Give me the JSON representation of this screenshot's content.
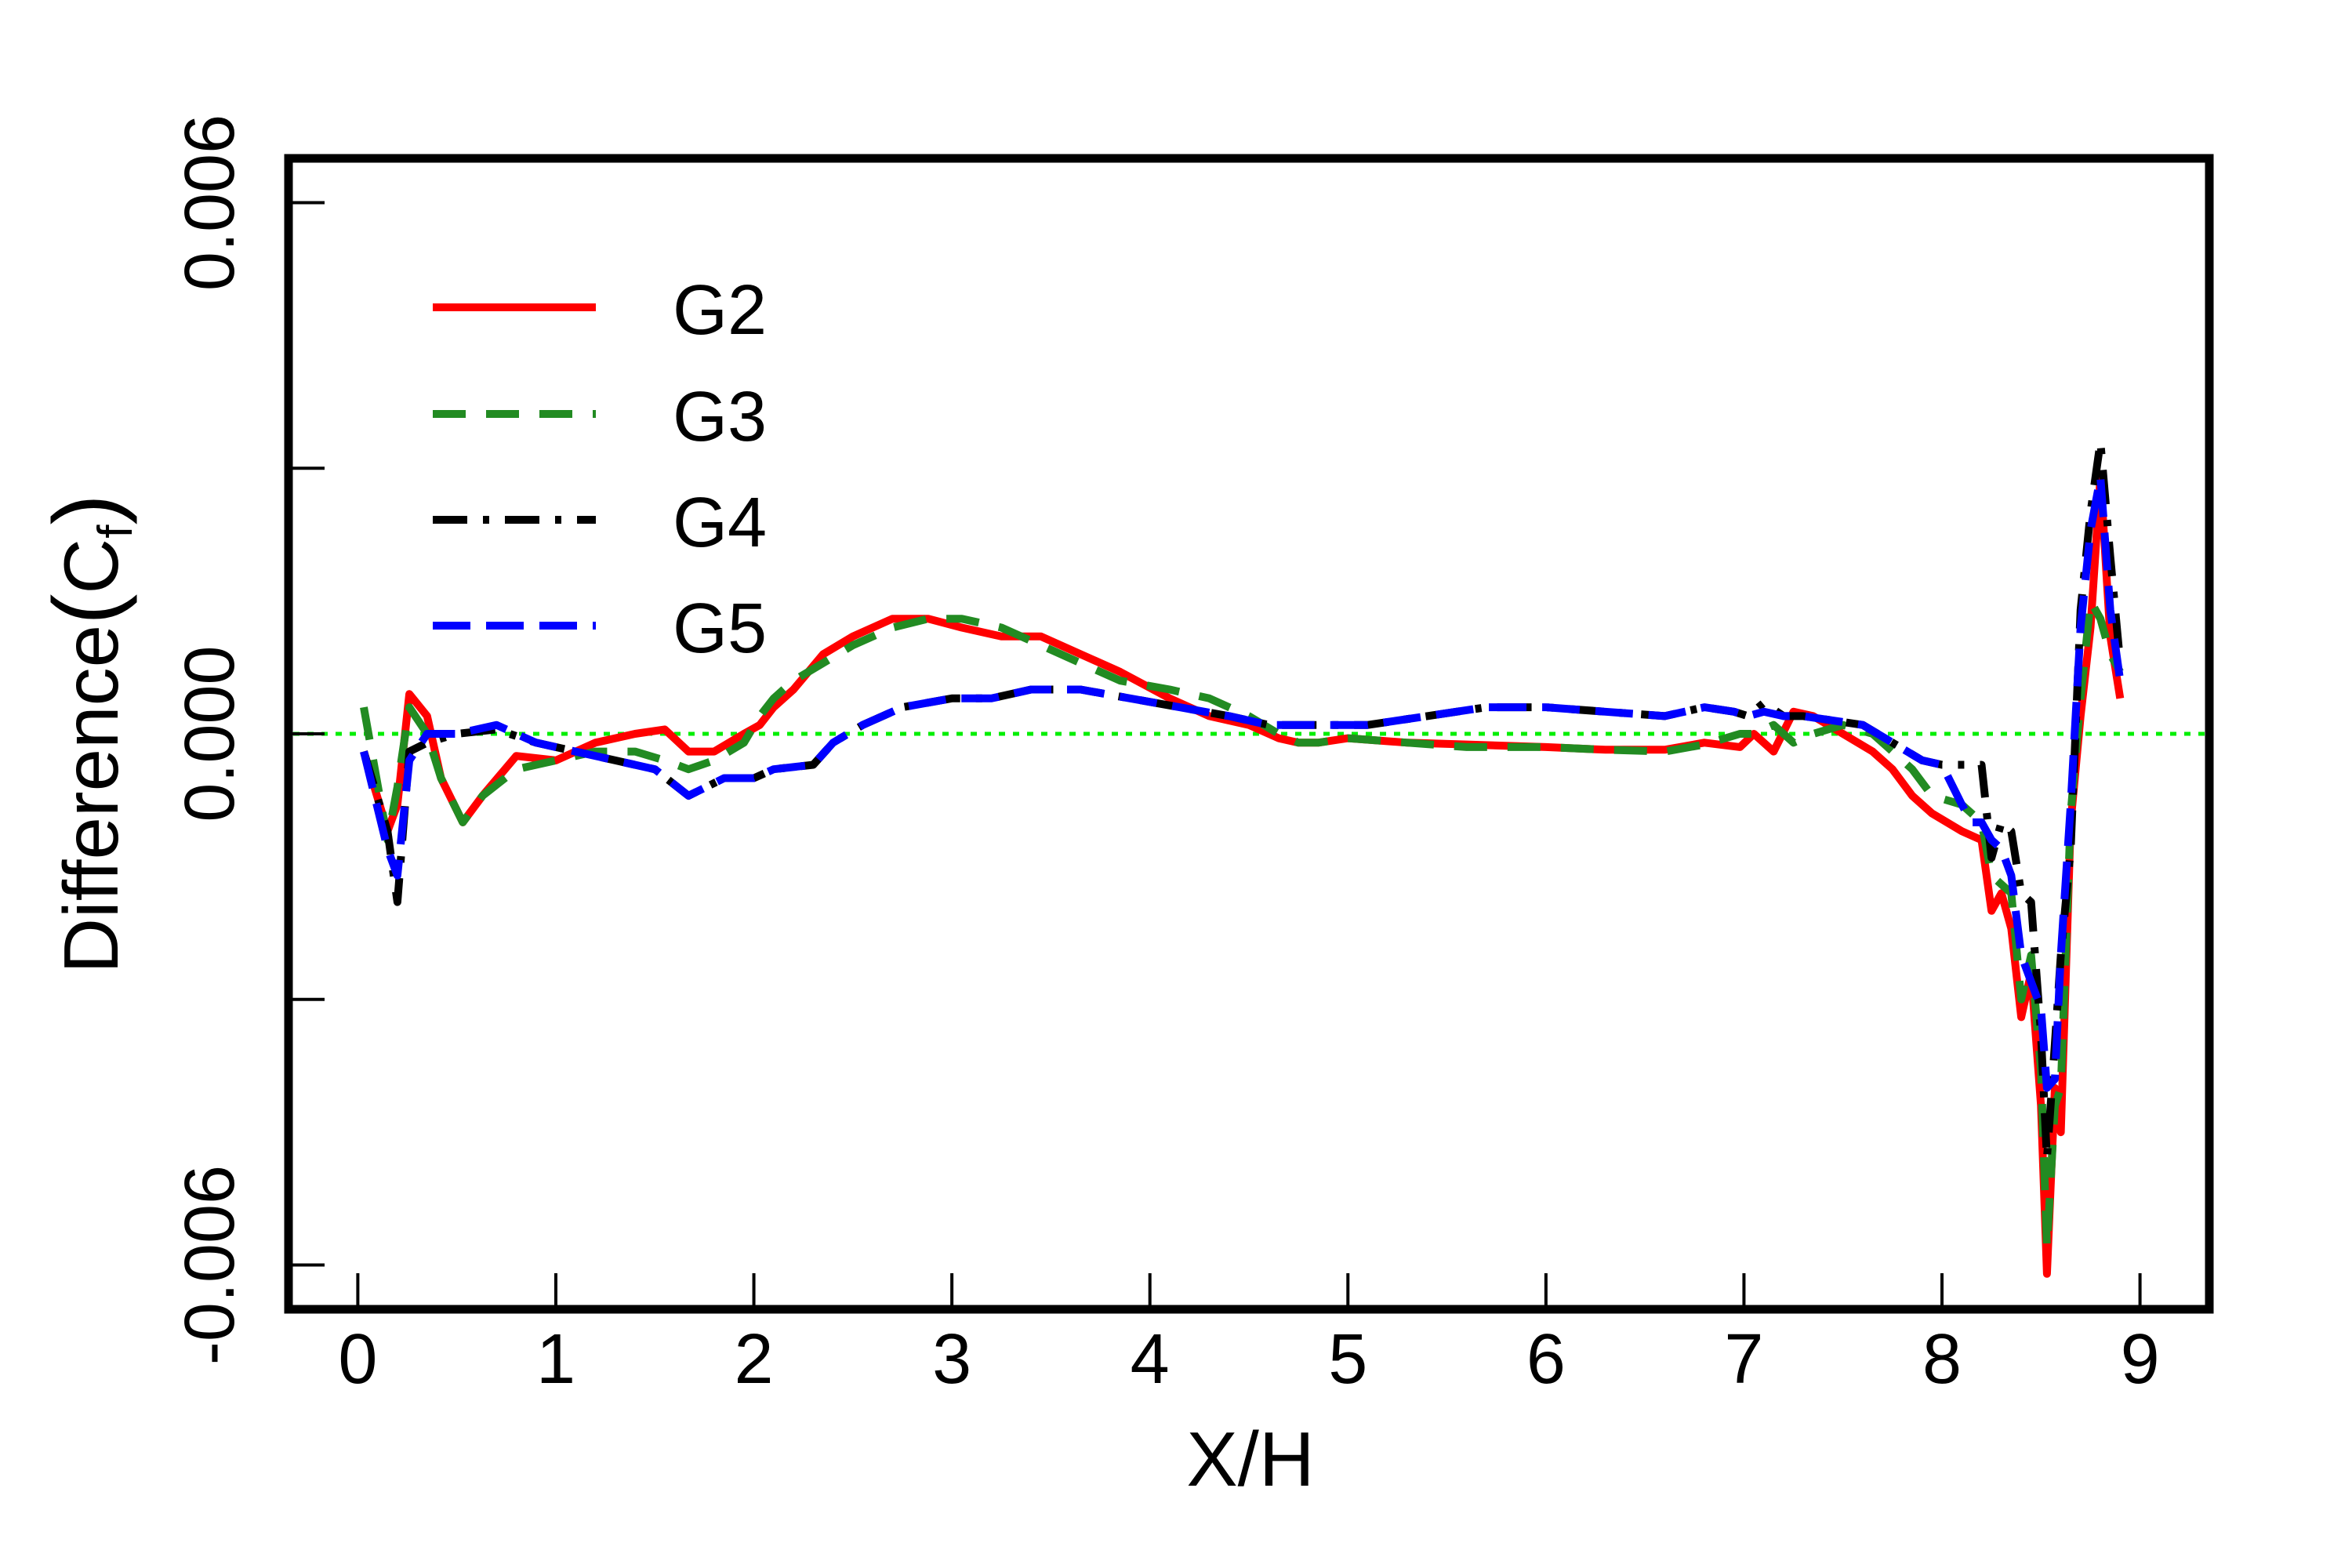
{
  "chart_data": {
    "type": "line",
    "title": "",
    "xlabel": "X/H",
    "ylabel_main": "Difference",
    "ylabel_open": "(",
    "ylabel_sym": "C",
    "ylabel_sub": "f",
    "ylabel_close": ")",
    "xlim": [
      -0.35,
      9.35
    ],
    "ylim": [
      -0.0065,
      0.0065
    ],
    "x_ticks": [
      0,
      1,
      2,
      3,
      4,
      5,
      6,
      7,
      8,
      9
    ],
    "x_tick_labels": [
      "0",
      "1",
      "2",
      "3",
      "4",
      "5",
      "6",
      "7",
      "8",
      "9"
    ],
    "y_ticks": [
      -0.006,
      -0.003,
      0.0,
      0.003,
      0.006
    ],
    "y_tick_labels": [
      "-0.006",
      "",
      "0.000",
      "",
      "0.006"
    ],
    "grid": false,
    "legend_position": "top-left",
    "reference_line": {
      "y": 0.0,
      "color": "#00ee00",
      "style": "dotted"
    },
    "series": [
      {
        "name": "G2",
        "color": "#ff0000",
        "dash": "solid",
        "x": [
          0.03,
          0.15,
          0.2,
          0.26,
          0.35,
          0.42,
          0.53,
          0.63,
          0.8,
          1.0,
          1.2,
          1.4,
          1.55,
          1.67,
          1.8,
          1.95,
          2.03,
          2.1,
          2.2,
          2.35,
          2.5,
          2.7,
          2.88,
          3.05,
          3.25,
          3.45,
          3.65,
          3.85,
          4.1,
          4.3,
          4.5,
          4.65,
          4.75,
          4.85,
          5.0,
          5.3,
          5.6,
          6.0,
          6.3,
          6.6,
          6.8,
          6.98,
          7.05,
          7.15,
          7.25,
          7.35,
          7.5,
          7.65,
          7.75,
          7.85,
          7.95,
          8.1,
          8.2,
          8.25,
          8.3,
          8.35,
          8.4,
          8.45,
          8.5,
          8.53,
          8.57,
          8.6,
          8.65,
          8.7,
          8.75,
          8.8,
          8.85,
          8.9
        ],
        "y": [
          -0.0002,
          -0.0011,
          -0.0008,
          0.00045,
          0.0002,
          -0.0005,
          -0.001,
          -0.0007,
          -0.00025,
          -0.0003,
          -0.0001,
          0.0,
          5e-05,
          -0.0002,
          -0.0002,
          0.0,
          0.0001,
          0.0003,
          0.0005,
          0.0009,
          0.0011,
          0.0013,
          0.0013,
          0.0012,
          0.0011,
          0.0011,
          0.0009,
          0.0007,
          0.0004,
          0.0002,
          0.0001,
          -5e-05,
          -0.0001,
          -0.0001,
          -5e-05,
          -0.0001,
          -0.00012,
          -0.00015,
          -0.00018,
          -0.00018,
          -0.0001,
          -0.00015,
          0.0,
          -0.0002,
          0.00025,
          0.0002,
          0.0,
          -0.0002,
          -0.0004,
          -0.0007,
          -0.0009,
          -0.0011,
          -0.0012,
          -0.002,
          -0.0018,
          -0.0022,
          -0.0032,
          -0.0027,
          -0.0042,
          -0.0061,
          -0.004,
          -0.0045,
          -0.001,
          0.0002,
          0.0012,
          0.0029,
          0.0011,
          0.0004
        ]
      },
      {
        "name": "G3",
        "color": "#228b22",
        "dash": "dashed",
        "x": [
          0.03,
          0.15,
          0.2,
          0.26,
          0.35,
          0.42,
          0.53,
          0.63,
          0.8,
          1.0,
          1.2,
          1.4,
          1.55,
          1.67,
          1.8,
          1.95,
          2.03,
          2.1,
          2.2,
          2.35,
          2.5,
          2.7,
          2.88,
          3.05,
          3.25,
          3.45,
          3.65,
          3.85,
          4.1,
          4.3,
          4.5,
          4.65,
          4.75,
          4.85,
          5.0,
          5.3,
          5.6,
          6.0,
          6.3,
          6.6,
          6.8,
          6.98,
          7.05,
          7.15,
          7.25,
          7.35,
          7.5,
          7.65,
          7.75,
          7.85,
          7.95,
          8.1,
          8.2,
          8.25,
          8.3,
          8.35,
          8.4,
          8.45,
          8.5,
          8.53,
          8.57,
          8.6,
          8.65,
          8.7,
          8.75,
          8.8,
          8.85,
          8.9
        ],
        "y": [
          0.0003,
          -0.0012,
          -0.0006,
          0.0003,
          0.0,
          -0.0005,
          -0.001,
          -0.0007,
          -0.0004,
          -0.0003,
          -0.0002,
          -0.0002,
          -0.0003,
          -0.0004,
          -0.0003,
          -0.0001,
          0.0002,
          0.0004,
          0.0006,
          0.0008,
          0.001,
          0.0012,
          0.0013,
          0.0013,
          0.0012,
          0.001,
          0.0008,
          0.0006,
          0.0005,
          0.0004,
          0.0002,
          0.0,
          -0.0001,
          -0.0001,
          -5e-05,
          -0.0001,
          -0.00015,
          -0.00015,
          -0.00018,
          -0.0002,
          -0.00012,
          0.0,
          0.0,
          0.0001,
          -0.0001,
          0.0,
          0.0001,
          0.0,
          -0.0002,
          -0.0004,
          -0.0007,
          -0.0008,
          -0.001,
          -0.0016,
          -0.0017,
          -0.0018,
          -0.003,
          -0.0025,
          -0.0038,
          -0.0058,
          -0.0042,
          -0.004,
          -0.0009,
          0.0004,
          0.0015,
          0.0013,
          0.0009,
          0.0007
        ]
      },
      {
        "name": "G4",
        "color": "#000000",
        "dash": "dashdot",
        "x": [
          0.03,
          0.15,
          0.2,
          0.26,
          0.35,
          0.5,
          0.7,
          0.9,
          1.1,
          1.3,
          1.5,
          1.67,
          1.85,
          2.0,
          2.1,
          2.3,
          2.4,
          2.55,
          2.75,
          3.0,
          3.2,
          3.4,
          3.65,
          3.9,
          4.15,
          4.4,
          4.6,
          4.85,
          5.1,
          5.4,
          5.7,
          6.0,
          6.3,
          6.6,
          6.8,
          6.95,
          7.02,
          7.1,
          7.2,
          7.3,
          7.45,
          7.6,
          7.75,
          7.9,
          8.0,
          8.1,
          8.15,
          8.2,
          8.25,
          8.3,
          8.35,
          8.4,
          8.45,
          8.5,
          8.53,
          8.57,
          8.6,
          8.65,
          8.7,
          8.75,
          8.8,
          8.85,
          8.9
        ],
        "y": [
          -0.0002,
          -0.0011,
          -0.0019,
          -0.0002,
          -0.0001,
          0.0,
          5e-05,
          -0.0001,
          -0.0002,
          -0.0003,
          -0.0004,
          -0.0007,
          -0.0005,
          -0.0005,
          -0.0004,
          -0.00035,
          -0.0001,
          0.0001,
          0.0003,
          0.0004,
          0.0004,
          0.0005,
          0.0005,
          0.0004,
          0.0003,
          0.0002,
          0.0001,
          0.0001,
          0.0001,
          0.0002,
          0.0003,
          0.0003,
          0.00025,
          0.0002,
          0.0003,
          0.00025,
          0.0002,
          0.00035,
          0.0002,
          0.0002,
          0.00015,
          0.0001,
          -0.0001,
          -0.0003,
          -0.00035,
          -0.00035,
          -0.00035,
          -0.00035,
          -0.0014,
          -0.001,
          -0.0011,
          -0.0018,
          -0.0019,
          -0.0034,
          -0.0048,
          -0.0035,
          -0.0025,
          -0.0013,
          0.0014,
          0.0025,
          0.0033,
          0.002,
          0.0008
        ]
      },
      {
        "name": "G5",
        "color": "#0000ff",
        "dash": "longdash",
        "x": [
          0.03,
          0.15,
          0.2,
          0.26,
          0.35,
          0.5,
          0.7,
          0.9,
          1.1,
          1.3,
          1.5,
          1.67,
          1.85,
          2.0,
          2.1,
          2.3,
          2.4,
          2.55,
          2.75,
          3.0,
          3.2,
          3.4,
          3.65,
          3.9,
          4.15,
          4.4,
          4.6,
          4.85,
          5.1,
          5.4,
          5.7,
          6.0,
          6.3,
          6.6,
          6.8,
          6.95,
          7.02,
          7.1,
          7.2,
          7.3,
          7.45,
          7.6,
          7.75,
          7.9,
          8.0,
          8.1,
          8.15,
          8.2,
          8.25,
          8.3,
          8.35,
          8.4,
          8.45,
          8.5,
          8.53,
          8.57,
          8.6,
          8.65,
          8.7,
          8.75,
          8.8,
          8.85,
          8.9
        ],
        "y": [
          -0.0002,
          -0.0013,
          -0.0016,
          -0.0003,
          0.0,
          0.0,
          0.0001,
          -0.0001,
          -0.0002,
          -0.0003,
          -0.0004,
          -0.0007,
          -0.0005,
          -0.0005,
          -0.0004,
          -0.00035,
          -0.0001,
          0.0001,
          0.0003,
          0.0004,
          0.0004,
          0.0005,
          0.0005,
          0.0004,
          0.0003,
          0.0002,
          0.0001,
          0.0001,
          0.0001,
          0.0002,
          0.0003,
          0.0003,
          0.00025,
          0.0002,
          0.0003,
          0.00025,
          0.0002,
          0.00025,
          0.0002,
          0.0002,
          0.00015,
          0.0001,
          -0.0001,
          -0.0003,
          -0.00035,
          -0.0008,
          -0.001,
          -0.001,
          -0.0012,
          -0.0013,
          -0.0016,
          -0.0025,
          -0.0028,
          -0.0031,
          -0.004,
          -0.0039,
          -0.0025,
          -0.0008,
          0.0012,
          0.0023,
          0.0029,
          0.0014,
          0.0006
        ]
      }
    ]
  }
}
